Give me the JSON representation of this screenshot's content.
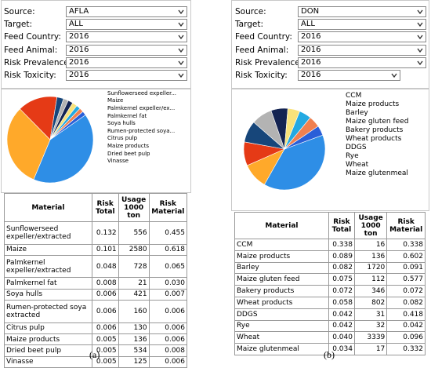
{
  "panel_a": {
    "filters": [
      {
        "label": "Source:",
        "value": "AFLA"
      },
      {
        "label": "Target:",
        "value": "ALL"
      },
      {
        "label": "Feed Country:",
        "value": "2016"
      },
      {
        "label": "Feed Animal:",
        "value": "2016"
      },
      {
        "label": "Risk Prevalence:",
        "value": "2016"
      },
      {
        "label": "Risk Toxicity:",
        "value": "2016"
      }
    ],
    "legend": [
      {
        "label": "Sunflowerseed expeller...",
        "color": "#2e8ee6"
      },
      {
        "label": "Maize",
        "color": "#ffa92a"
      },
      {
        "label": "Palmkernel expeller/ex...",
        "color": "#e53a16"
      },
      {
        "label": "Palmkernel fat",
        "color": "#17467a"
      },
      {
        "label": "Soya hulls",
        "color": "#b3b3b3"
      },
      {
        "label": "Rumen-protected soya...",
        "color": "#142452"
      },
      {
        "label": "Citrus pulp",
        "color": "#f8e27a"
      },
      {
        "label": "Maize products",
        "color": "#23a9e2"
      },
      {
        "label": "Dried beet pulp",
        "color": "#f08050"
      },
      {
        "label": "Vinasse",
        "color": "#2a5fd8"
      }
    ],
    "table": {
      "headers": [
        "Material",
        "Risk Total",
        "Usage 1000 ton",
        "Risk Material"
      ],
      "rows": [
        [
          "Sunflowerseed expeller/extracted",
          "0.132",
          "556",
          "0.455"
        ],
        [
          "Maize",
          "0.101",
          "2580",
          "0.618"
        ],
        [
          "Palmkernel expeller/extracted",
          "0.048",
          "728",
          "0.065"
        ],
        [
          "Palmkernel fat",
          "0.008",
          "21",
          "0.030"
        ],
        [
          "Soya hulls",
          "0.006",
          "421",
          "0.007"
        ],
        [
          "Rumen-protected soya extracted",
          "0.006",
          "160",
          "0.006"
        ],
        [
          "Citrus pulp",
          "0.006",
          "130",
          "0.006"
        ],
        [
          "Maize products",
          "0.005",
          "136",
          "0.006"
        ],
        [
          "Dried beet pulp",
          "0.005",
          "534",
          "0.008"
        ],
        [
          "Vinasse",
          "0.005",
          "125",
          "0.006"
        ]
      ]
    },
    "caption": "(a)"
  },
  "panel_b": {
    "filters": [
      {
        "label": "Source:",
        "value": "DON"
      },
      {
        "label": "Target:",
        "value": "ALL"
      },
      {
        "label": "Feed Country:",
        "value": "2016"
      },
      {
        "label": "Feed Animal:",
        "value": "2016"
      },
      {
        "label": "Risk Prevalence:",
        "value": "2016"
      },
      {
        "label": "Risk Toxicity:",
        "value": "2016"
      }
    ],
    "legend": [
      {
        "label": "CCM",
        "color": "#2e8ee6"
      },
      {
        "label": "Maize products",
        "color": "#ffa92a"
      },
      {
        "label": "Barley",
        "color": "#e53a16"
      },
      {
        "label": "Maize gluten feed",
        "color": "#17467a"
      },
      {
        "label": "Bakery products",
        "color": "#b3b3b3"
      },
      {
        "label": "Wheat products",
        "color": "#142452"
      },
      {
        "label": "DDGS",
        "color": "#f8e27a"
      },
      {
        "label": "Rye",
        "color": "#23a9e2"
      },
      {
        "label": "Wheat",
        "color": "#f08050"
      },
      {
        "label": "Maize glutenmeal",
        "color": "#2a5fd8"
      }
    ],
    "table": {
      "headers": [
        "Material",
        "Risk Total",
        "Usage 1000 ton",
        "Risk Material"
      ],
      "rows": [
        [
          "CCM",
          "0.338",
          "16",
          "0.338"
        ],
        [
          "Maize products",
          "0.089",
          "136",
          "0.602"
        ],
        [
          "Barley",
          "0.082",
          "1720",
          "0.091"
        ],
        [
          "Maize gluten feed",
          "0.075",
          "112",
          "0.577"
        ],
        [
          "Bakery products",
          "0.072",
          "346",
          "0.072"
        ],
        [
          "Wheat products",
          "0.058",
          "802",
          "0.082"
        ],
        [
          "DDGS",
          "0.042",
          "31",
          "0.418"
        ],
        [
          "Rye",
          "0.042",
          "32",
          "0.042"
        ],
        [
          "Wheat",
          "0.040",
          "3339",
          "0.096"
        ],
        [
          "Maize glutenmeal",
          "0.034",
          "17",
          "0.332"
        ]
      ]
    },
    "caption": "(b)"
  },
  "chart_data": [
    {
      "type": "pie",
      "labels": [
        "Sunflowerseed expeller...",
        "Maize",
        "Palmkernel expeller/ex...",
        "Palmkernel fat",
        "Soya hulls",
        "Rumen-protected soya...",
        "Citrus pulp",
        "Maize products",
        "Dried beet pulp",
        "Vinasse"
      ],
      "values": [
        0.132,
        0.101,
        0.048,
        0.008,
        0.006,
        0.006,
        0.006,
        0.005,
        0.005,
        0.005
      ],
      "colors": [
        "#2e8ee6",
        "#ffa92a",
        "#e53a16",
        "#17467a",
        "#b3b3b3",
        "#142452",
        "#f8e27a",
        "#23a9e2",
        "#f08050",
        "#2a5fd8"
      ]
    },
    {
      "type": "pie",
      "labels": [
        "CCM",
        "Maize products",
        "Barley",
        "Maize gluten feed",
        "Bakery products",
        "Wheat products",
        "DDGS",
        "Rye",
        "Wheat",
        "Maize glutenmeal"
      ],
      "values": [
        0.338,
        0.089,
        0.082,
        0.075,
        0.072,
        0.058,
        0.042,
        0.042,
        0.04,
        0.034
      ],
      "colors": [
        "#2e8ee6",
        "#ffa92a",
        "#e53a16",
        "#17467a",
        "#b3b3b3",
        "#142452",
        "#f8e27a",
        "#23a9e2",
        "#f08050",
        "#2a5fd8"
      ]
    }
  ]
}
